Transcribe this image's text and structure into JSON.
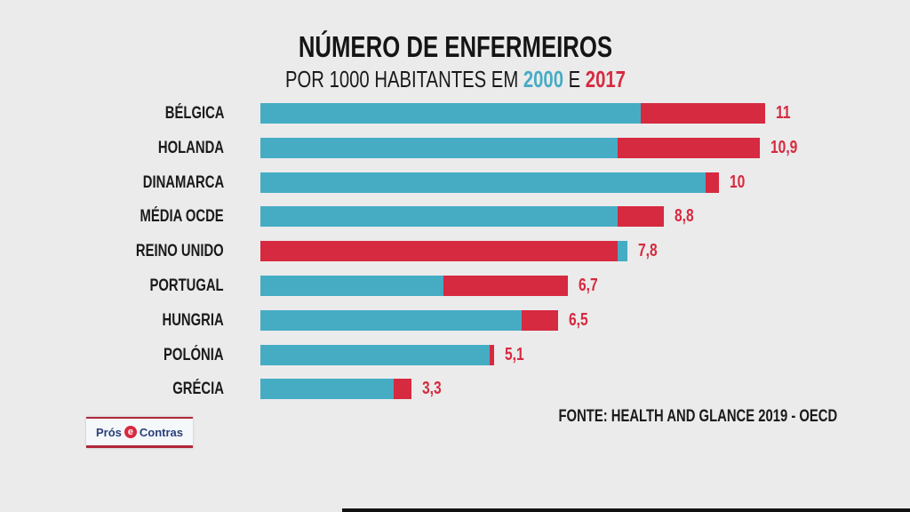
{
  "chart_data": {
    "type": "bar",
    "orientation": "horizontal",
    "title": "NÚMERO DE ENFERMEIROS",
    "subtitle_prefix": "POR 1000 HABITANTES EM",
    "subtitle_join": "E",
    "categories": [
      "BÉLGICA",
      "HOLANDA",
      "DINAMARCA",
      "MÉDIA OCDE",
      "REINO UNIDO",
      "PORTUGAL",
      "HUNGRIA",
      "POLÓNIA",
      "GRÉCIA"
    ],
    "series": [
      {
        "name": "2000",
        "color": "#46acc4",
        "values": [
          8.3,
          7.8,
          9.7,
          7.8,
          8.0,
          4.0,
          5.7,
          5.0,
          2.9
        ]
      },
      {
        "name": "2017",
        "color": "#d62a40",
        "values": [
          11,
          10.9,
          10,
          8.8,
          7.8,
          6.7,
          6.5,
          5.1,
          3.3
        ]
      }
    ],
    "value_labels": [
      "11",
      "10,9",
      "10",
      "8,8",
      "7,8",
      "6,7",
      "6,5",
      "5,1",
      "3,3"
    ],
    "xlim": [
      0,
      11
    ],
    "grid": false,
    "source": "FONTE: HEALTH AND GLANCE 2019 - OECD"
  },
  "logo": {
    "left": "Prós",
    "mid": "e",
    "right": "Contras"
  }
}
